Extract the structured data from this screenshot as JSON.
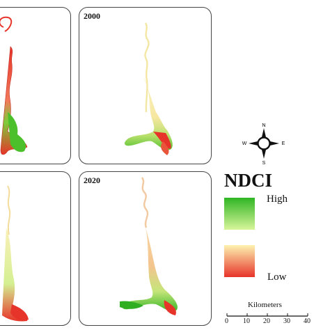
{
  "panels": [
    {
      "id": "top-left",
      "year": ""
    },
    {
      "id": "top-right",
      "year": "2000"
    },
    {
      "id": "bottom-left",
      "year": ""
    },
    {
      "id": "bottom-right",
      "year": "2020"
    }
  ],
  "legend": {
    "title": "NDCI",
    "high_label": "High",
    "low_label": "Low",
    "colors": {
      "high": "#2fb524",
      "high_light": "#d8f59a",
      "low_light": "#fdf3b0",
      "low": "#e7342a"
    }
  },
  "north_arrow": {
    "n": "N",
    "s": "S",
    "e": "E",
    "w": "W"
  },
  "scale_bar": {
    "title": "Kilometers",
    "ticks": [
      "0",
      "10",
      "20",
      "30",
      "40"
    ]
  }
}
